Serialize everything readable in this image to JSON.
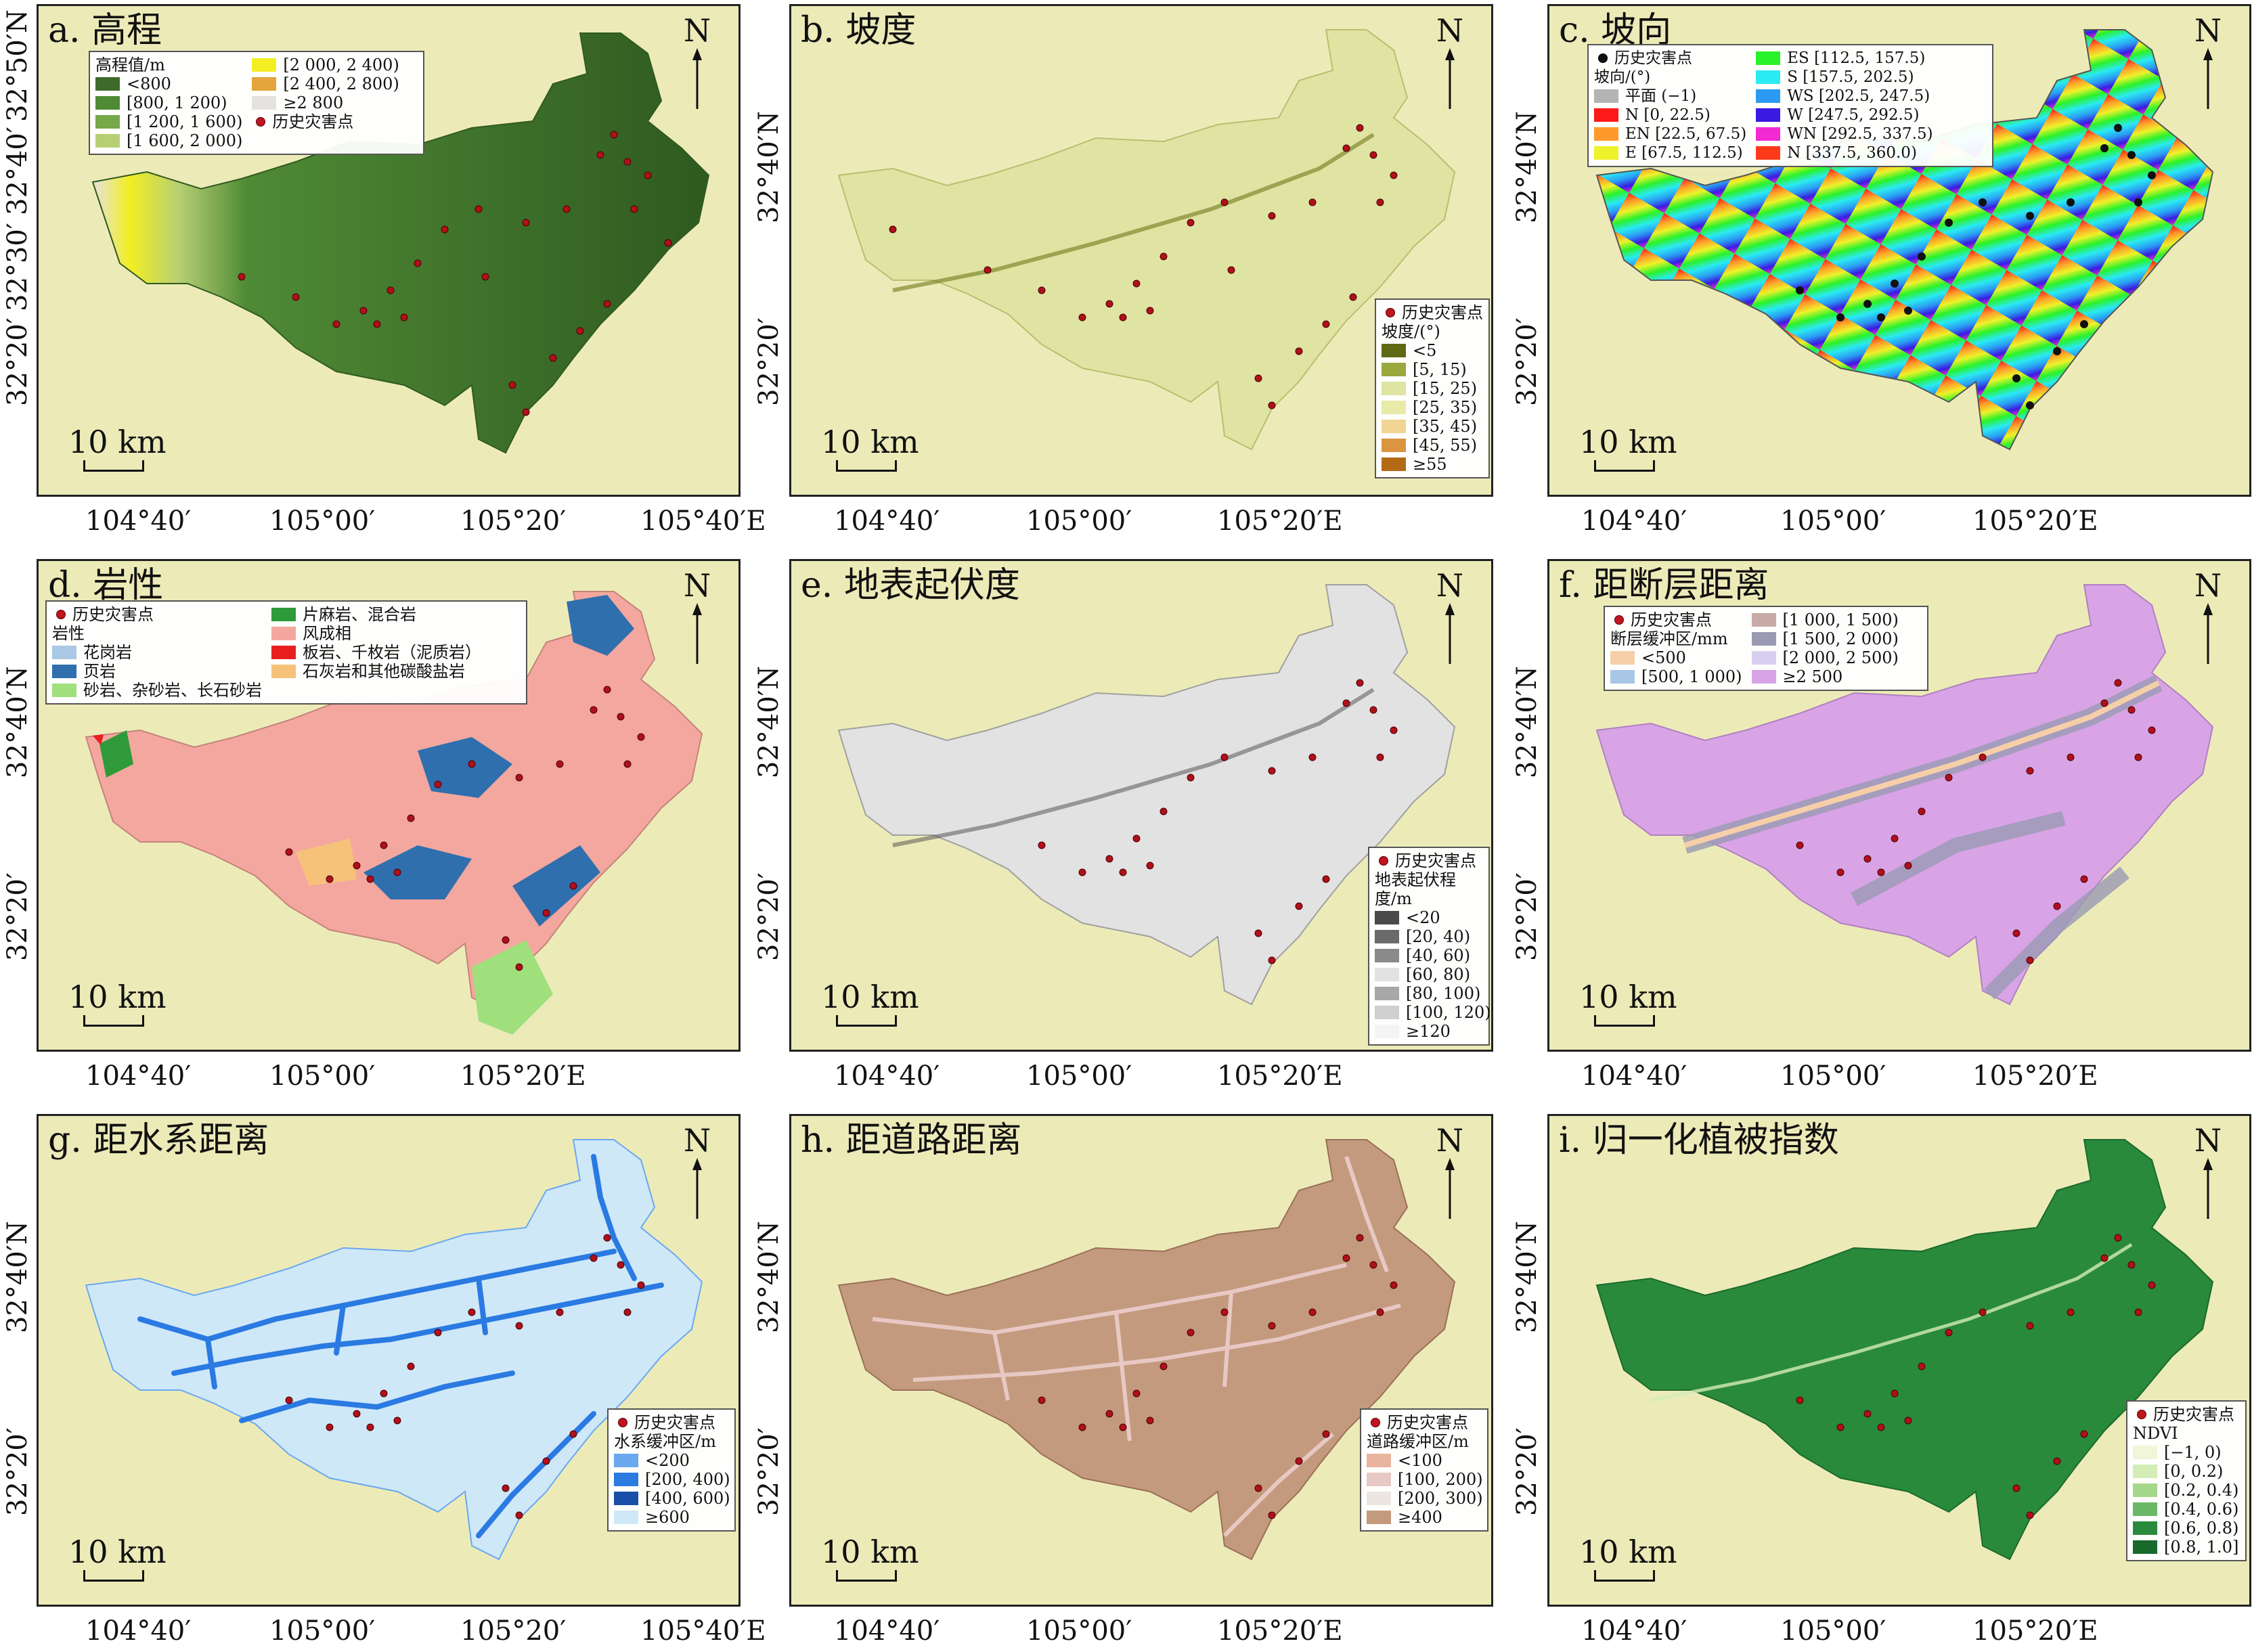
{
  "north_label": "N",
  "scale_label": "10 km",
  "hazard_label": "历史灾害点",
  "x_ticks_4": [
    "104°40′",
    "105°00′",
    "105°20′",
    "105°40′E"
  ],
  "x_ticks_3": [
    "104°40′",
    "105°00′",
    "105°20′E"
  ],
  "y_ticks_a": [
    "32°50′N",
    "32°40′",
    "32°30′",
    "32°20′"
  ],
  "y_ticks_b": [
    "32°40′N",
    "32°20′"
  ],
  "panels": [
    {
      "id": "a",
      "title": "a. 高程",
      "legend": {
        "heading": "高程值/m",
        "items": [
          {
            "label": "<800",
            "color": "#3f6b2a"
          },
          {
            "label": "[800, 1 200)",
            "color": "#4f8a35"
          },
          {
            "label": "[1 200, 1 600)",
            "color": "#77a84a"
          },
          {
            "label": "[1 600, 2 000)",
            "color": "#b7cf74"
          },
          {
            "label": "[2 000, 2 400)",
            "color": "#f2ee22"
          },
          {
            "label": "[2 400, 2 800)",
            "color": "#e4a53c"
          },
          {
            "label": "≥2 800",
            "color": "#e6e2df"
          }
        ],
        "hazard": "历史灾害点"
      }
    },
    {
      "id": "b",
      "title": "b. 坡度",
      "legend": {
        "heading": "坡度/(°)",
        "items": [
          {
            "label": "<5",
            "color": "#5f6a12"
          },
          {
            "label": "[5, 15)",
            "color": "#9aa83e"
          },
          {
            "label": "[15, 25)",
            "color": "#dfe4a3"
          },
          {
            "label": "[25, 35)",
            "color": "#e8eaa8"
          },
          {
            "label": "[35, 45)",
            "color": "#f1d594"
          },
          {
            "label": "[45, 55)",
            "color": "#d99540"
          },
          {
            "label": "≥55",
            "color": "#b46a14"
          }
        ],
        "hazard": "历史灾害点"
      }
    },
    {
      "id": "c",
      "title": "c. 坡向",
      "legend": {
        "heading": "坡向/(°)",
        "items": [
          {
            "label": "平面 (−1)",
            "color": "#b4b4b4"
          },
          {
            "label": "N [0, 22.5)",
            "color": "#ff1a1a"
          },
          {
            "label": "EN [22.5, 67.5)",
            "color": "#ff9a2a"
          },
          {
            "label": "E [67.5, 112.5)",
            "color": "#eef22a"
          },
          {
            "label": "ES [112.5, 157.5)",
            "color": "#2af22a"
          },
          {
            "label": "S [157.5, 202.5)",
            "color": "#2aeaf2"
          },
          {
            "label": "WS [202.5, 247.5)",
            "color": "#2a9af2"
          },
          {
            "label": "W [247.5, 292.5)",
            "color": "#3a1ae2"
          },
          {
            "label": "WN [292.5, 337.5)",
            "color": "#f22ad2"
          },
          {
            "label": "N [337.5, 360.0)",
            "color": "#ff3a1a"
          }
        ],
        "hazard": "历史灾害点"
      }
    },
    {
      "id": "d",
      "title": "d. 岩性",
      "legend": {
        "heading": "岩性",
        "items": [
          {
            "label": "花岗岩",
            "color": "#a9c8e4"
          },
          {
            "label": "页岩",
            "color": "#2f6fae"
          },
          {
            "label": "砂岩、杂砂岩、长石砂岩",
            "color": "#9fe07d"
          },
          {
            "label": "片麻岩、混合岩",
            "color": "#2e9a3a"
          },
          {
            "label": "风成相",
            "color": "#f4a79e"
          },
          {
            "label": "板岩、千枚岩（泥质岩）",
            "color": "#e81f1f"
          },
          {
            "label": "石灰岩和其他碳酸盐岩",
            "color": "#f6c27a"
          }
        ],
        "hazard": "历史灾害点"
      }
    },
    {
      "id": "e",
      "title": "e. 地表起伏度",
      "legend": {
        "heading": "地表起伏程度/m",
        "items": [
          {
            "label": "<20",
            "color": "#4a4a4a"
          },
          {
            "label": "[20, 40)",
            "color": "#6a6a6a"
          },
          {
            "label": "[40, 60)",
            "color": "#8a8a8a"
          },
          {
            "label": "[60, 80)",
            "color": "#e2e2e2"
          },
          {
            "label": "[80, 100)",
            "color": "#a8a8a8"
          },
          {
            "label": "[100, 120)",
            "color": "#cfcfcf"
          },
          {
            "label": "≥120",
            "color": "#f4f4f4"
          }
        ],
        "hazard": "历史灾害点"
      }
    },
    {
      "id": "f",
      "title": "f. 距断层距离",
      "legend": {
        "heading": "断层缓冲区/mm",
        "items": [
          {
            "label": "<500",
            "color": "#f6cfa8"
          },
          {
            "label": "[500, 1 000)",
            "color": "#a8c6e6"
          },
          {
            "label": "[1 000, 1 500)",
            "color": "#c7a9a6"
          },
          {
            "label": "[1 500, 2 000)",
            "color": "#9a9ab4"
          },
          {
            "label": "[2 000, 2 500)",
            "color": "#d8cff0"
          },
          {
            "label": "≥2 500",
            "color": "#d8a4e6"
          }
        ],
        "hazard": "历史灾害点"
      }
    },
    {
      "id": "g",
      "title": "g. 距水系距离",
      "legend": {
        "heading": "水系缓冲区/m",
        "items": [
          {
            "label": "<200",
            "color": "#6aa8f0"
          },
          {
            "label": "[200, 400)",
            "color": "#2a7ae2"
          },
          {
            "label": "[400, 600)",
            "color": "#1a4fa8"
          },
          {
            "label": "≥600",
            "color": "#cfe8f8"
          }
        ],
        "hazard": "历史灾害点"
      }
    },
    {
      "id": "h",
      "title": "h. 距道路距离",
      "legend": {
        "heading": "道路缓冲区/m",
        "items": [
          {
            "label": "<100",
            "color": "#e8b49e"
          },
          {
            "label": "[100, 200)",
            "color": "#e8c8c4"
          },
          {
            "label": "[200, 300)",
            "color": "#ece6e2"
          },
          {
            "label": "≥400",
            "color": "#c49a7e"
          }
        ],
        "hazard": "历史灾害点"
      }
    },
    {
      "id": "i",
      "title": "i. 归一化植被指数",
      "legend": {
        "heading": "NDVI",
        "items": [
          {
            "label": "[−1, 0)",
            "color": "#f2f6d8"
          },
          {
            "label": "[0, 0.2)",
            "color": "#d4ecb6"
          },
          {
            "label": "[0.2, 0.4)",
            "color": "#a6d88c"
          },
          {
            "label": "[0.4, 0.6)",
            "color": "#6ab866"
          },
          {
            "label": "[0.6, 0.8)",
            "color": "#2a8a3c"
          },
          {
            "label": "[0.8, 1.0]",
            "color": "#1a6a2c"
          }
        ],
        "hazard": "历史灾害点"
      }
    }
  ]
}
